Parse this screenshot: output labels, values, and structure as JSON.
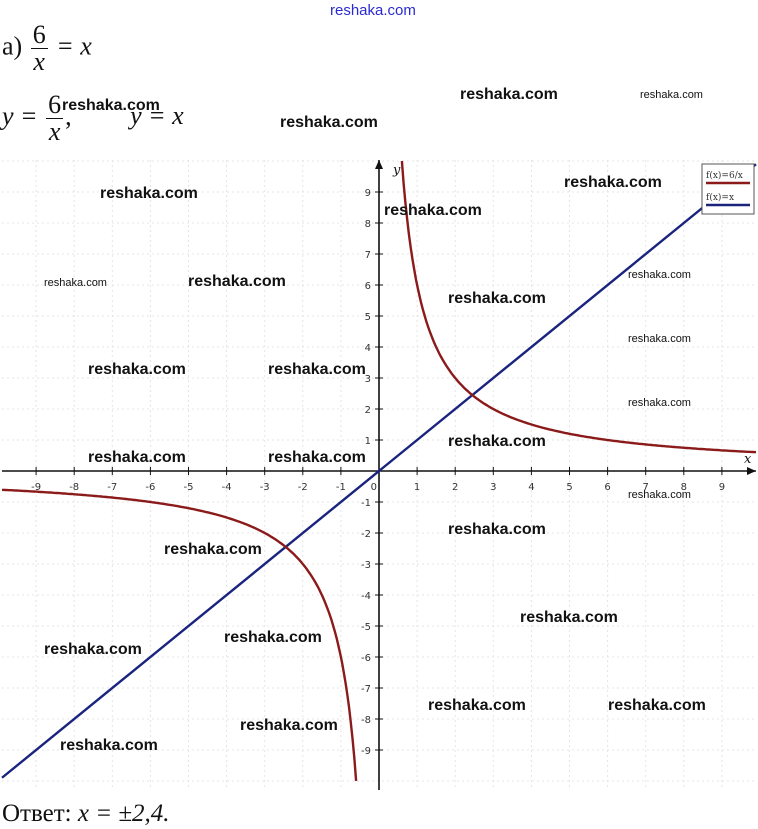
{
  "header": {
    "site": "reshaka.com"
  },
  "problem": {
    "label": "а)",
    "numerator": "6",
    "denominator": "x",
    "equation_rhs": "= x",
    "y_eq1_lhs": "y =",
    "y_eq1_num": "6",
    "y_eq1_den": "x",
    "y_eq1_sep": ",",
    "y_eq2": "y = x"
  },
  "answer": {
    "label": "Ответ:",
    "value": "x = ±2,4."
  },
  "watermark": "reshaka.com",
  "chart_data": {
    "type": "line",
    "xlabel": "x",
    "ylabel": "y",
    "xlim": [
      -10,
      10
    ],
    "ylim": [
      -10,
      10
    ],
    "x_ticks": [
      -9,
      -8,
      -7,
      -6,
      -5,
      -4,
      -3,
      -2,
      -1,
      1,
      2,
      3,
      4,
      5,
      6,
      7,
      8,
      9
    ],
    "y_ticks": [
      -9,
      -8,
      -7,
      -6,
      -5,
      -4,
      -3,
      -2,
      -1,
      1,
      2,
      3,
      4,
      5,
      6,
      7,
      8,
      9
    ],
    "grid": true,
    "legend": {
      "placement": "top-right",
      "entries": [
        "f(x)=6/x",
        "f(x)=x"
      ]
    },
    "series": [
      {
        "name": "f(x)=6/x",
        "formula": "6/x",
        "color": "#8b1a1a"
      },
      {
        "name": "f(x)=x",
        "formula": "x",
        "color": "#1a237e"
      }
    ],
    "intersections": [
      [
        2.45,
        2.45
      ],
      [
        -2.45,
        -2.45
      ]
    ]
  }
}
